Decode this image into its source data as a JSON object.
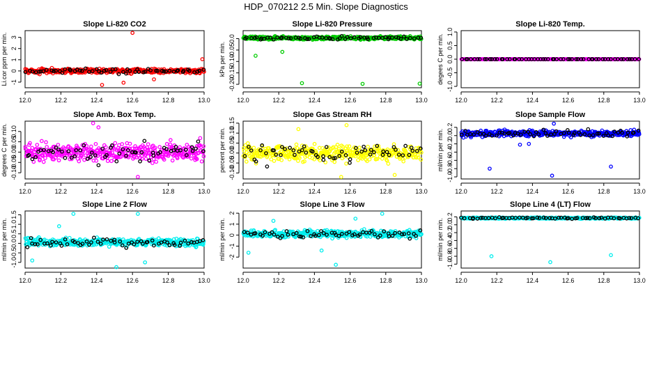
{
  "figure_title": "HDP_070212  2.5 Min. Slope Diagnostics",
  "highlight_color": "#000000",
  "chart_data": [
    {
      "type": "scatter",
      "title": "Slope Li-820 CO2",
      "ylabel": "Li.cor ppm per min.",
      "xlim": [
        12.0,
        13.0
      ],
      "ylim": [
        -1.5,
        3.6
      ],
      "x_ticks": [
        12.0,
        12.2,
        12.4,
        12.6,
        12.8,
        13.0
      ],
      "y_ticks": [
        -1,
        0,
        1,
        2,
        3
      ],
      "color": "#ff0000",
      "base": 0.0,
      "spread": 0.35,
      "outliers": [
        {
          "x": 12.6,
          "y": 3.4
        },
        {
          "x": 12.43,
          "y": -1.25
        },
        {
          "x": 12.55,
          "y": -1.05
        },
        {
          "x": 12.99,
          "y": 1.05
        },
        {
          "x": 12.72,
          "y": -0.75
        }
      ]
    },
    {
      "type": "scatter",
      "title": "Slope Li-820 Pressure",
      "ylabel": "kPa per min.",
      "xlim": [
        12.0,
        13.0
      ],
      "ylim": [
        -0.215,
        0.035
      ],
      "x_ticks": [
        12.0,
        12.2,
        12.4,
        12.6,
        12.8,
        13.0
      ],
      "y_ticks": [
        0.0,
        -0.05,
        -0.1,
        -0.15,
        -0.2
      ],
      "y_tick_labels": [
        "0.0",
        "-0.05",
        "-0.10",
        "-0.15",
        "-0.20"
      ],
      "color": "#00cc00",
      "base": 0.003,
      "spread": 0.012,
      "outliers": [
        {
          "x": 12.33,
          "y": -0.195
        },
        {
          "x": 12.67,
          "y": -0.198
        },
        {
          "x": 12.99,
          "y": -0.197
        },
        {
          "x": 12.22,
          "y": -0.058
        },
        {
          "x": 12.07,
          "y": -0.075
        }
      ]
    },
    {
      "type": "scatter",
      "title": "Slope Li-820 Temp.",
      "ylabel": "degees C per min.",
      "xlim": [
        12.0,
        13.0
      ],
      "ylim": [
        -1.05,
        1.05
      ],
      "x_ticks": [
        12.0,
        12.2,
        12.4,
        12.6,
        12.8,
        13.0
      ],
      "y_ticks": [
        -1.0,
        -0.5,
        0.0,
        0.5,
        1.0
      ],
      "y_tick_labels": [
        "-1.0",
        "-0.5",
        "0.0",
        "0.5",
        "1.0"
      ],
      "color": "#ff00ff",
      "base": 0.0,
      "spread": 0.0,
      "outliers": []
    },
    {
      "type": "scatter",
      "title": "Slope Amb. Box Temp.",
      "ylabel": "degrees C per min.",
      "xlim": [
        12.0,
        13.0
      ],
      "ylim": [
        -0.13,
        0.15
      ],
      "x_ticks": [
        12.0,
        12.2,
        12.4,
        12.6,
        12.8,
        13.0
      ],
      "y_ticks": [
        -0.1,
        -0.05,
        0.0,
        0.05,
        0.1
      ],
      "y_tick_labels": [
        "-0.10",
        "-0.05",
        "0.00",
        "0.05",
        "0.10"
      ],
      "color": "#ff00ff",
      "base": 0.0,
      "spread": 0.08,
      "outliers": [
        {
          "x": 12.38,
          "y": 0.14
        },
        {
          "x": 12.41,
          "y": 0.12
        },
        {
          "x": 12.63,
          "y": -0.12
        }
      ]
    },
    {
      "type": "scatter",
      "title": "Slope Gas Stream RH",
      "ylabel": "percent per min.",
      "xlim": [
        12.0,
        13.0
      ],
      "ylim": [
        -0.13,
        0.16
      ],
      "x_ticks": [
        12.0,
        12.2,
        12.4,
        12.6,
        12.8,
        13.0
      ],
      "y_ticks": [
        -0.1,
        -0.05,
        0.0,
        0.05,
        0.1,
        0.15
      ],
      "y_tick_labels": [
        "-0.10",
        "-0.05",
        "0.00",
        "0.05",
        "0.10",
        "0.15"
      ],
      "color": "#ffff00",
      "base": 0.0,
      "spread": 0.07,
      "outliers": [
        {
          "x": 12.58,
          "y": 0.14
        },
        {
          "x": 12.31,
          "y": 0.12
        },
        {
          "x": 12.55,
          "y": -0.12
        },
        {
          "x": 12.85,
          "y": -0.11
        }
      ]
    },
    {
      "type": "scatter",
      "title": "Slope Sample Flow",
      "ylabel": "ml/min per min.",
      "xlim": [
        12.0,
        13.0
      ],
      "ylim": [
        -1.05,
        0.35
      ],
      "x_ticks": [
        12.0,
        12.2,
        12.4,
        12.6,
        12.8,
        13.0
      ],
      "y_ticks": [
        -1.0,
        -0.8,
        -0.6,
        -0.4,
        -0.2,
        0.0,
        0.2
      ],
      "y_tick_labels": [
        "-1.0",
        "-0.8",
        "-0.6",
        "-0.4",
        "-0.2",
        "0.0",
        "0.2"
      ],
      "color": "#0000ff",
      "base": 0.05,
      "spread": 0.12,
      "outliers": [
        {
          "x": 12.16,
          "y": -0.8
        },
        {
          "x": 12.51,
          "y": -0.97
        },
        {
          "x": 12.84,
          "y": -0.75
        },
        {
          "x": 12.38,
          "y": -0.2
        },
        {
          "x": 12.33,
          "y": -0.22
        },
        {
          "x": 12.52,
          "y": 0.29
        }
      ]
    },
    {
      "type": "scatter",
      "title": "Slope Line 2 Flow",
      "ylabel": "ml/min per min.",
      "xlim": [
        12.0,
        13.0
      ],
      "ylim": [
        -1.3,
        1.7
      ],
      "x_ticks": [
        12.0,
        12.2,
        12.4,
        12.6,
        12.8,
        13.0
      ],
      "y_ticks": [
        -1.0,
        -0.5,
        0.0,
        0.5,
        1.0,
        1.5
      ],
      "y_tick_labels": [
        "-1.0",
        "-0.5",
        "0.0",
        "0.5",
        "1.0",
        "1.5"
      ],
      "color": "#00eeee",
      "base": 0.05,
      "spread": 0.35,
      "outliers": [
        {
          "x": 12.51,
          "y": -1.25
        },
        {
          "x": 12.63,
          "y": 1.55
        },
        {
          "x": 12.04,
          "y": -0.9
        },
        {
          "x": 12.27,
          "y": 1.55
        },
        {
          "x": 12.67,
          "y": -1.0
        },
        {
          "x": 12.19,
          "y": 0.9
        }
      ]
    },
    {
      "type": "scatter",
      "title": "Slope Line 3 Flow",
      "ylabel": "ml/min per min.",
      "xlim": [
        12.0,
        13.0
      ],
      "ylim": [
        -3.0,
        2.2
      ],
      "x_ticks": [
        12.0,
        12.2,
        12.4,
        12.6,
        12.8,
        13.0
      ],
      "y_ticks": [
        -2,
        -1,
        0,
        1,
        2
      ],
      "color": "#00eeee",
      "base": 0.1,
      "spread": 0.55,
      "outliers": [
        {
          "x": 12.52,
          "y": -2.7
        },
        {
          "x": 12.78,
          "y": 1.95
        },
        {
          "x": 12.03,
          "y": -1.6
        },
        {
          "x": 12.63,
          "y": 1.5
        },
        {
          "x": 12.17,
          "y": 1.3
        },
        {
          "x": 12.44,
          "y": -1.4
        }
      ]
    },
    {
      "type": "scatter",
      "title": "Slope Line 4 (LT) Flow",
      "ylabel": "ml/min per min.",
      "xlim": [
        12.0,
        13.0
      ],
      "ylim": [
        -1.1,
        0.35
      ],
      "x_ticks": [
        12.0,
        12.2,
        12.4,
        12.6,
        12.8,
        13.0
      ],
      "y_ticks": [
        -1.0,
        -0.8,
        -0.6,
        -0.4,
        -0.2,
        0.0,
        0.2
      ],
      "y_tick_labels": [
        "-1.0",
        "-0.8",
        "-0.6",
        "-0.4",
        "-0.2",
        "0.0",
        "0.2"
      ],
      "color": "#00eeee",
      "base": 0.17,
      "spread": 0.03,
      "outliers": [
        {
          "x": 12.17,
          "y": -0.8
        },
        {
          "x": 12.5,
          "y": -0.95
        },
        {
          "x": 12.84,
          "y": -0.77
        }
      ]
    }
  ]
}
